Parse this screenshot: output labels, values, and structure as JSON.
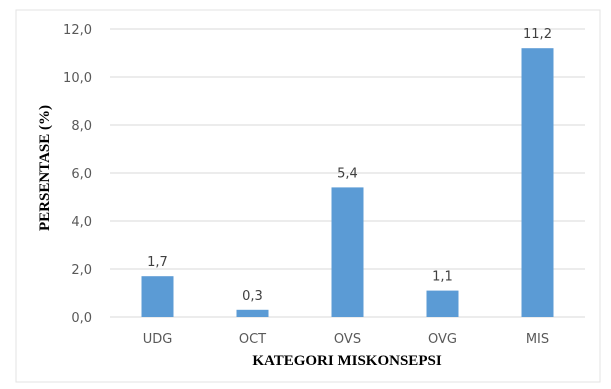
{
  "chart_data": {
    "type": "bar",
    "xlabel": "KATEGORI MISKONSEPSI",
    "ylabel": "PERSENTASE (%)",
    "categories": [
      "UDG",
      "OCT",
      "OVS",
      "OVG",
      "MIS"
    ],
    "values": [
      1.7,
      0.3,
      5.4,
      1.1,
      11.2
    ],
    "value_labels": [
      "1,7",
      "0,3",
      "5,4",
      "1,1",
      "11,2"
    ],
    "ylim": [
      0,
      12
    ],
    "yticks": [
      0,
      2,
      4,
      6,
      8,
      10,
      12
    ],
    "ytick_labels": [
      "0,0",
      "2,0",
      "4,0",
      "6,0",
      "8,0",
      "10,0",
      "12,0"
    ],
    "grid": true,
    "legend": false,
    "bar_color": "#5b9bd5"
  }
}
